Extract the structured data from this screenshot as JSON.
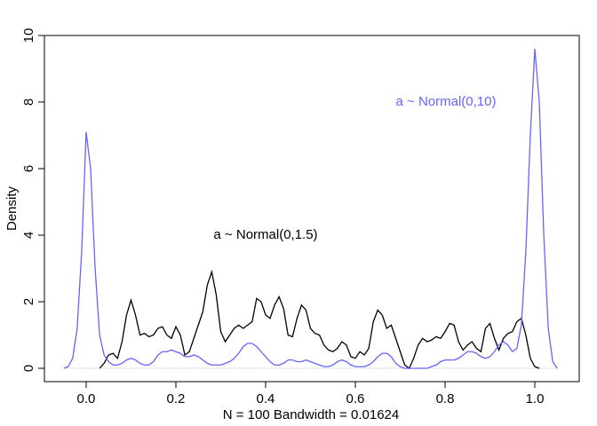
{
  "chart_data": {
    "type": "line",
    "x_label": "N = 100   Bandwidth = 0.01624",
    "y_label": "Density",
    "xlim": [
      -0.093,
      1.099
    ],
    "ylim": [
      -0.4,
      10
    ],
    "xticks": [
      {
        "value": 0,
        "label": "0.0"
      },
      0.2,
      0.4,
      0.6,
      0.8,
      {
        "value": 1,
        "label": "1.0"
      }
    ],
    "yticks": [
      0,
      2,
      4,
      6,
      8,
      10
    ],
    "x": [
      -0.05,
      -0.04,
      -0.03,
      -0.02,
      -0.01,
      0,
      0.01,
      0.02,
      0.03,
      0.04,
      0.05,
      0.06,
      0.07,
      0.08,
      0.09,
      0.1,
      0.11,
      0.12,
      0.13,
      0.14,
      0.15,
      0.16,
      0.17,
      0.18,
      0.19,
      0.2,
      0.21,
      0.22,
      0.23,
      0.24,
      0.25,
      0.26,
      0.27,
      0.28,
      0.29,
      0.3,
      0.31,
      0.32,
      0.33,
      0.34,
      0.35,
      0.36,
      0.37,
      0.38,
      0.39,
      0.4,
      0.41,
      0.42,
      0.43,
      0.44,
      0.45,
      0.46,
      0.47,
      0.48,
      0.49,
      0.5,
      0.51,
      0.52,
      0.53,
      0.54,
      0.55,
      0.56,
      0.57,
      0.58,
      0.59,
      0.6,
      0.61,
      0.62,
      0.63,
      0.64,
      0.65,
      0.66,
      0.67,
      0.68,
      0.69,
      0.7,
      0.71,
      0.72,
      0.73,
      0.74,
      0.75,
      0.76,
      0.77,
      0.78,
      0.79,
      0.8,
      0.81,
      0.82,
      0.83,
      0.84,
      0.85,
      0.86,
      0.87,
      0.88,
      0.89,
      0.9,
      0.91,
      0.92,
      0.93,
      0.94,
      0.95,
      0.96,
      0.97,
      0.98,
      0.99,
      1,
      1.01,
      1.02,
      1.03,
      1.04,
      1.05
    ],
    "series": [
      {
        "color": "#000000",
        "values": [
          null,
          null,
          null,
          null,
          null,
          null,
          null,
          null,
          0,
          0.15,
          0.4,
          0.45,
          0.3,
          0.8,
          1.6,
          2.05,
          1.6,
          1.0,
          1.05,
          0.95,
          1.0,
          1.2,
          1.25,
          1.0,
          0.9,
          1.25,
          1.0,
          0.4,
          0.5,
          0.9,
          1.3,
          1.7,
          2.5,
          2.9,
          2.2,
          1.1,
          0.8,
          1.0,
          1.2,
          1.3,
          1.2,
          1.3,
          1.4,
          2.1,
          2.0,
          1.6,
          1.5,
          1.9,
          2.15,
          1.8,
          1.0,
          0.95,
          1.5,
          1.9,
          1.75,
          1.2,
          1.05,
          1.0,
          0.7,
          0.55,
          0.5,
          0.6,
          0.8,
          0.7,
          0.35,
          0.3,
          0.5,
          0.4,
          0.6,
          1.4,
          1.75,
          1.6,
          1.2,
          1.3,
          0.9,
          0.5,
          0.1,
          0,
          0.3,
          0.7,
          0.9,
          0.8,
          0.85,
          0.95,
          0.9,
          1.1,
          1.35,
          1.3,
          0.8,
          0.55,
          0.7,
          0.8,
          0.6,
          0.5,
          1.2,
          1.35,
          0.9,
          0.55,
          0.9,
          1.05,
          1.1,
          1.4,
          1.5,
          1.0,
          0.3,
          0.05,
          0,
          null,
          null,
          null,
          null
        ]
      },
      {
        "color": "#6464ff",
        "values": [
          0,
          0.05,
          0.3,
          1.2,
          3.5,
          7.1,
          6.0,
          3.0,
          1.0,
          0.4,
          0.2,
          0.1,
          0.1,
          0.15,
          0.25,
          0.3,
          0.25,
          0.15,
          0.1,
          0.1,
          0.2,
          0.4,
          0.5,
          0.5,
          0.55,
          0.5,
          0.45,
          0.35,
          0.35,
          0.4,
          0.35,
          0.25,
          0.15,
          0.1,
          0.1,
          0.1,
          0.15,
          0.2,
          0.3,
          0.45,
          0.65,
          0.75,
          0.75,
          0.65,
          0.5,
          0.35,
          0.2,
          0.1,
          0.1,
          0.15,
          0.25,
          0.25,
          0.2,
          0.2,
          0.25,
          0.2,
          0.15,
          0.1,
          0.05,
          0.05,
          0.1,
          0.2,
          0.25,
          0.2,
          0.1,
          0.05,
          0.05,
          0.05,
          0.1,
          0.2,
          0.35,
          0.45,
          0.45,
          0.35,
          0.15,
          0.05,
          0,
          0,
          0,
          0,
          0,
          0,
          0.05,
          0.1,
          0.2,
          0.25,
          0.25,
          0.25,
          0.3,
          0.4,
          0.5,
          0.5,
          0.45,
          0.35,
          0.3,
          0.35,
          0.5,
          0.7,
          0.8,
          0.7,
          0.5,
          0.6,
          1.3,
          3.5,
          7.0,
          9.6,
          8.0,
          4.0,
          1.2,
          0.2,
          0
        ]
      }
    ],
    "annotations": [
      {
        "text": "a ~ Normal(0,1.5)",
        "color": "#000000"
      },
      {
        "text": "a ~ Normal(0,10)",
        "color": "#6464ff"
      }
    ]
  }
}
